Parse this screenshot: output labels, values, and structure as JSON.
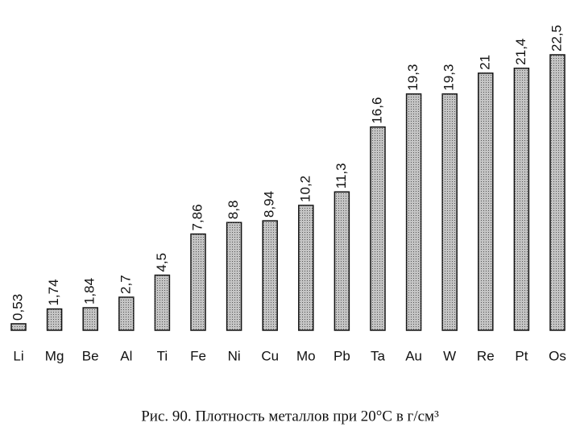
{
  "chart_data": {
    "type": "bar",
    "caption": "Рис. 90. Плотность металлов при 20°C в г/см³",
    "categories": [
      "Li",
      "Mg",
      "Be",
      "Al",
      "Ti",
      "Fe",
      "Ni",
      "Cu",
      "Mo",
      "Pb",
      "Ta",
      "Au",
      "W",
      "Re",
      "Pt",
      "Os"
    ],
    "values": [
      0.53,
      1.74,
      1.84,
      2.7,
      4.5,
      7.86,
      8.8,
      8.94,
      10.2,
      11.3,
      16.6,
      19.3,
      19.3,
      21,
      21.4,
      22.5
    ],
    "value_labels": [
      "0,53",
      "1,74",
      "1,84",
      "2,7",
      "4,5",
      "7,86",
      "8,8",
      "8,94",
      "10,2",
      "11,3",
      "16,6",
      "19,3",
      "19,3",
      "21",
      "21,4",
      "22,5"
    ],
    "color": "#c4c4c4"
  }
}
